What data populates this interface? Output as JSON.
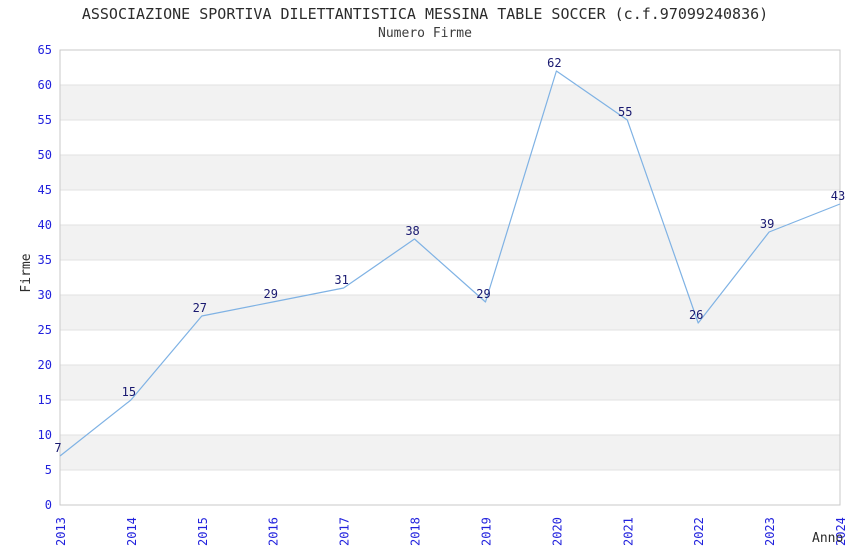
{
  "chart_data": {
    "type": "line",
    "title": "ASSOCIAZIONE SPORTIVA DILETTANTISTICA MESSINA TABLE SOCCER (c.f.97099240836)",
    "subtitle": "Numero Firme",
    "xlabel": "Anno",
    "ylabel": "Firme",
    "categories": [
      "2013",
      "2014",
      "2015",
      "2016",
      "2017",
      "2018",
      "2019",
      "2020",
      "2021",
      "2022",
      "2023",
      "2024"
    ],
    "values": [
      7,
      15,
      27,
      29,
      31,
      38,
      29,
      62,
      55,
      26,
      39,
      43
    ],
    "ylim": [
      0,
      65
    ],
    "ytick_step": 5,
    "grid": true,
    "alternating_bands": true,
    "legend_position": "none",
    "marker": "none",
    "colors": {
      "line": "#7fb2e4",
      "tick_label": "#2222dd",
      "value_label": "#191970",
      "band": "#f2f2f2",
      "gridline": "#e2e2e2",
      "plot_border": "#c9c9c9",
      "title_text": "#2b2b2b"
    }
  }
}
